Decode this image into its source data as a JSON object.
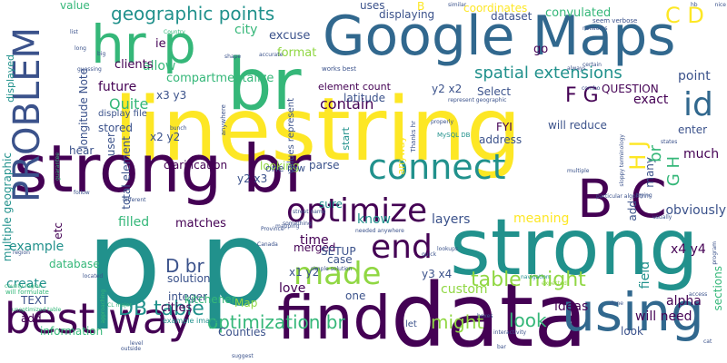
{
  "palette": {
    "purple": "#440154",
    "indigo": "#3b528b",
    "blue": "#31688e",
    "teal": "#21918c",
    "green": "#35b779",
    "lime": "#90d743",
    "yellow": "#fde725"
  },
  "words": [
    {
      "text": "linestring",
      "color": "yellow"
    },
    {
      "text": "Google Maps",
      "color": "blue"
    },
    {
      "text": "strong br",
      "color": "purple"
    },
    {
      "text": "p p",
      "color": "teal"
    },
    {
      "text": "data",
      "color": "purple"
    },
    {
      "text": "strong",
      "color": "teal"
    },
    {
      "text": "find",
      "color": "purple"
    },
    {
      "text": "br",
      "color": "green"
    },
    {
      "text": "hr p",
      "color": "green"
    },
    {
      "text": "best way",
      "color": "purple"
    },
    {
      "text": "using",
      "color": "blue"
    },
    {
      "text": "B C",
      "color": "purple"
    },
    {
      "text": "connect",
      "color": "teal"
    },
    {
      "text": "optimize",
      "color": "purple"
    },
    {
      "text": "made",
      "color": "lime"
    },
    {
      "text": "end",
      "color": "purple"
    },
    {
      "text": "PROBLEM",
      "color": "indigo"
    },
    {
      "text": "id",
      "color": "blue"
    },
    {
      "text": "geographic points",
      "color": "teal"
    },
    {
      "text": "table might",
      "color": "lime"
    },
    {
      "text": "DB table",
      "color": "teal"
    },
    {
      "text": "optimization br",
      "color": "green"
    },
    {
      "text": "spatial extensions",
      "color": "teal"
    },
    {
      "text": "contain",
      "color": "purple"
    },
    {
      "text": "C D",
      "color": "yellow"
    },
    {
      "text": "F G",
      "color": "purple"
    },
    {
      "text": "H J",
      "color": "yellow"
    },
    {
      "text": "might",
      "color": "lime"
    },
    {
      "text": "look",
      "color": "green"
    },
    {
      "text": "D br",
      "color": "indigo"
    },
    {
      "text": "Quite",
      "color": "green"
    },
    {
      "text": "future",
      "color": "purple"
    },
    {
      "text": "allow",
      "color": "green"
    },
    {
      "text": "clients",
      "color": "purple"
    },
    {
      "text": "compartmentalize",
      "color": "green"
    },
    {
      "text": "city",
      "color": "green"
    },
    {
      "text": "excuse",
      "color": "indigo"
    },
    {
      "text": "format",
      "color": "lime"
    },
    {
      "text": "uses",
      "color": "indigo"
    },
    {
      "text": "displaying",
      "color": "indigo"
    },
    {
      "text": "coordinates",
      "color": "yellow"
    },
    {
      "text": "convulated",
      "color": "green"
    },
    {
      "text": "dataset",
      "color": "indigo"
    },
    {
      "text": "go",
      "color": "purple"
    },
    {
      "text": "point",
      "color": "indigo"
    },
    {
      "text": "QUESTION",
      "color": "purple"
    },
    {
      "text": "exact",
      "color": "purple"
    },
    {
      "text": "Select",
      "color": "indigo"
    },
    {
      "text": "FYI",
      "color": "purple"
    },
    {
      "text": "address",
      "color": "indigo"
    },
    {
      "text": "will reduce",
      "color": "indigo"
    },
    {
      "text": "y2 x2",
      "color": "indigo"
    },
    {
      "text": "x2 y2",
      "color": "indigo"
    },
    {
      "text": "x3 y3",
      "color": "indigo"
    },
    {
      "text": "latitude",
      "color": "indigo"
    },
    {
      "text": "element count",
      "color": "purple"
    },
    {
      "text": "longitude Note",
      "color": "indigo"
    },
    {
      "text": "stored",
      "color": "indigo"
    },
    {
      "text": "display file",
      "color": "indigo"
    },
    {
      "text": "hear",
      "color": "indigo"
    },
    {
      "text": "user",
      "color": "indigo"
    },
    {
      "text": "clarification",
      "color": "purple"
    },
    {
      "text": "looking",
      "color": "lime"
    },
    {
      "text": "parse",
      "color": "indigo"
    },
    {
      "text": "y2 x3",
      "color": "indigo"
    },
    {
      "text": "one row",
      "color": "indigo"
    },
    {
      "text": "sure",
      "color": "teal"
    },
    {
      "text": "know",
      "color": "teal"
    },
    {
      "text": "layers",
      "color": "indigo"
    },
    {
      "text": "meaning",
      "color": "yellow"
    },
    {
      "text": "filled",
      "color": "green"
    },
    {
      "text": "matches",
      "color": "purple"
    },
    {
      "text": "solution",
      "color": "indigo"
    },
    {
      "text": "integer",
      "color": "indigo"
    },
    {
      "text": "cities",
      "color": "purple"
    },
    {
      "text": "kitchener",
      "color": "green"
    },
    {
      "text": "Map",
      "color": "lime"
    },
    {
      "text": "Counties",
      "color": "indigo"
    },
    {
      "text": "love",
      "color": "purple"
    },
    {
      "text": "time",
      "color": "purple"
    },
    {
      "text": "merged",
      "color": "purple"
    },
    {
      "text": "x1 y2",
      "color": "indigo"
    },
    {
      "text": "case",
      "color": "indigo"
    },
    {
      "text": "SETUP",
      "color": "indigo"
    },
    {
      "text": "y3 x4",
      "color": "indigo"
    },
    {
      "text": "custom",
      "color": "lime"
    },
    {
      "text": "one",
      "color": "indigo"
    },
    {
      "text": "ideas",
      "color": "purple"
    },
    {
      "text": "will need",
      "color": "purple"
    },
    {
      "text": "alpha",
      "color": "purple"
    },
    {
      "text": "field",
      "color": "teal"
    },
    {
      "text": "x4 y4",
      "color": "purple"
    },
    {
      "text": "obviously",
      "color": "indigo"
    },
    {
      "text": "add",
      "color": "indigo"
    },
    {
      "text": "many",
      "color": "indigo"
    },
    {
      "text": "enter",
      "color": "indigo"
    },
    {
      "text": "much",
      "color": "purple"
    },
    {
      "text": "br",
      "color": "green"
    },
    {
      "text": "G H",
      "color": "green"
    },
    {
      "text": "sections",
      "color": "green"
    },
    {
      "text": "example",
      "color": "teal"
    },
    {
      "text": "database",
      "color": "green"
    },
    {
      "text": "create",
      "color": "teal"
    },
    {
      "text": "TEXT",
      "color": "indigo"
    },
    {
      "text": "add",
      "color": "purple"
    },
    {
      "text": "information",
      "color": "green"
    },
    {
      "text": "value",
      "color": "green"
    },
    {
      "text": "displayed",
      "color": "teal"
    },
    {
      "text": "multiple geographic",
      "color": "teal"
    },
    {
      "text": "etc",
      "color": "purple"
    },
    {
      "text": "total element",
      "color": "indigo"
    },
    {
      "text": "anyway",
      "color": "yellow"
    },
    {
      "text": "start",
      "color": "teal"
    },
    {
      "text": "ie",
      "color": "purple"
    },
    {
      "text": "values represent",
      "color": "indigo"
    },
    {
      "text": "look",
      "color": "indigo"
    },
    {
      "text": "let",
      "color": "indigo"
    },
    {
      "text": "B",
      "color": "yellow"
    },
    {
      "text": "Thanks hr",
      "color": "indigo"
    },
    {
      "text": "MySQL DB",
      "color": "teal"
    },
    {
      "text": "works best",
      "color": "indigo"
    },
    {
      "text": "street name",
      "color": "indigo"
    },
    {
      "text": "needed anywhere",
      "color": "indigo"
    },
    {
      "text": "represent geographic",
      "color": "indigo"
    },
    {
      "text": "particular algorithm",
      "color": "indigo"
    },
    {
      "text": "sloppy terminology",
      "color": "indigo"
    },
    {
      "text": "example image",
      "color": "teal"
    },
    {
      "text": "county region",
      "color": "green"
    },
    {
      "text": "unoptimized table",
      "color": "green"
    },
    {
      "text": "will formulate",
      "color": "green"
    },
    {
      "text": "seem verbose",
      "color": "indigo"
    },
    {
      "text": "properly",
      "color": "indigo"
    },
    {
      "text": "networks",
      "color": "indigo"
    },
    {
      "text": "anywhere",
      "color": "indigo"
    },
    {
      "text": "guessing",
      "color": "indigo"
    },
    {
      "text": "Country",
      "color": "green"
    },
    {
      "text": "accurate",
      "color": "indigo"
    },
    {
      "text": "Province",
      "color": "indigo"
    },
    {
      "text": "mapping",
      "color": "indigo"
    },
    {
      "text": "something",
      "color": "indigo"
    },
    {
      "text": "simple solution",
      "color": "indigo"
    },
    {
      "text": "navigation",
      "color": "teal"
    },
    {
      "text": "expected",
      "color": "lime"
    },
    {
      "text": "interactivity",
      "color": "indigo"
    },
    {
      "text": "boxes",
      "color": "indigo"
    },
    {
      "text": "located",
      "color": "indigo"
    },
    {
      "text": "quick",
      "color": "indigo"
    },
    {
      "text": "Canada",
      "color": "indigo"
    },
    {
      "text": "lookups",
      "color": "indigo"
    },
    {
      "text": "program",
      "color": "indigo"
    },
    {
      "text": "trying",
      "color": "indigo"
    },
    {
      "text": "usually",
      "color": "indigo"
    },
    {
      "text": "states",
      "color": "indigo"
    },
    {
      "text": "multiple",
      "color": "indigo"
    },
    {
      "text": "different",
      "color": "indigo"
    },
    {
      "text": "similar",
      "color": "indigo"
    },
    {
      "text": "nice",
      "color": "indigo"
    },
    {
      "text": "hb",
      "color": "indigo"
    },
    {
      "text": "always",
      "color": "indigo"
    },
    {
      "text": "certain",
      "color": "indigo"
    },
    {
      "text": "approaching",
      "color": "green"
    },
    {
      "text": "guarantee",
      "color": "green"
    },
    {
      "text": "list",
      "color": "indigo"
    },
    {
      "text": "long",
      "color": "indigo"
    },
    {
      "text": "shape",
      "color": "indigo"
    },
    {
      "text": "combo",
      "color": "indigo"
    },
    {
      "text": "big",
      "color": "indigo"
    },
    {
      "text": "bunch",
      "color": "indigo"
    },
    {
      "text": "follow",
      "color": "indigo"
    },
    {
      "text": "region",
      "color": "indigo"
    },
    {
      "text": "CL major",
      "color": "green"
    },
    {
      "text": "level",
      "color": "indigo"
    },
    {
      "text": "access",
      "color": "indigo"
    },
    {
      "text": "suggest",
      "color": "indigo"
    },
    {
      "text": "outside",
      "color": "indigo"
    },
    {
      "text": "bar",
      "color": "indigo"
    },
    {
      "text": "done",
      "color": "indigo"
    },
    {
      "text": "cat",
      "color": "indigo"
    }
  ]
}
